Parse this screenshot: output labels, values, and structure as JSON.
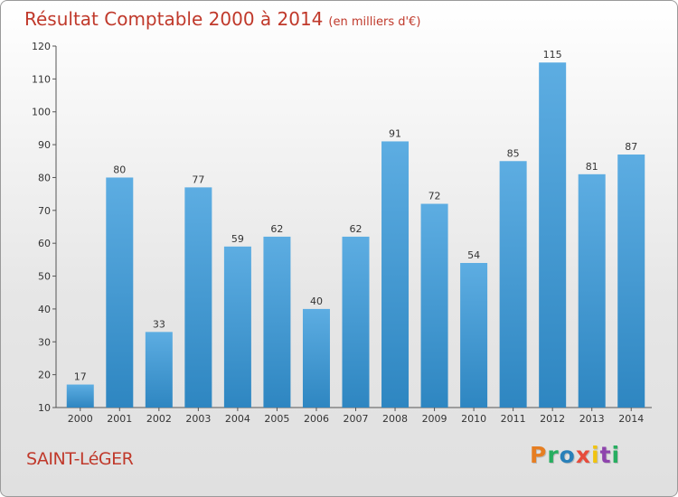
{
  "header": {
    "title": "Résultat Comptable 2000 à 2014",
    "subtitle": "(en milliers d'€)"
  },
  "footer": {
    "city": "SAINT-LéGER",
    "logo_letters": [
      {
        "ch": "P",
        "color": "#e67e22"
      },
      {
        "ch": "r",
        "color": "#27ae60"
      },
      {
        "ch": "o",
        "color": "#2980b9"
      },
      {
        "ch": "x",
        "color": "#e74c3c"
      },
      {
        "ch": "i",
        "color": "#f1c40f"
      },
      {
        "ch": "t",
        "color": "#8e44ad"
      },
      {
        "ch": "i",
        "color": "#27ae60"
      }
    ]
  },
  "chart_data": {
    "type": "bar",
    "title": "Résultat Comptable 2000 à 2014",
    "subtitle": "(en milliers d'€)",
    "categories": [
      "2000",
      "2001",
      "2002",
      "2003",
      "2004",
      "2005",
      "2006",
      "2007",
      "2008",
      "2009",
      "2010",
      "2011",
      "2012",
      "2013",
      "2014"
    ],
    "values": [
      17,
      80,
      33,
      77,
      59,
      62,
      40,
      62,
      91,
      72,
      54,
      85,
      115,
      81,
      87
    ],
    "ylim": [
      10,
      120
    ],
    "yticks": [
      10,
      20,
      30,
      40,
      50,
      60,
      70,
      80,
      90,
      100,
      110,
      120
    ],
    "grid": false,
    "bar_color_top": "#5dade2",
    "bar_color_bottom": "#2e86c1"
  }
}
